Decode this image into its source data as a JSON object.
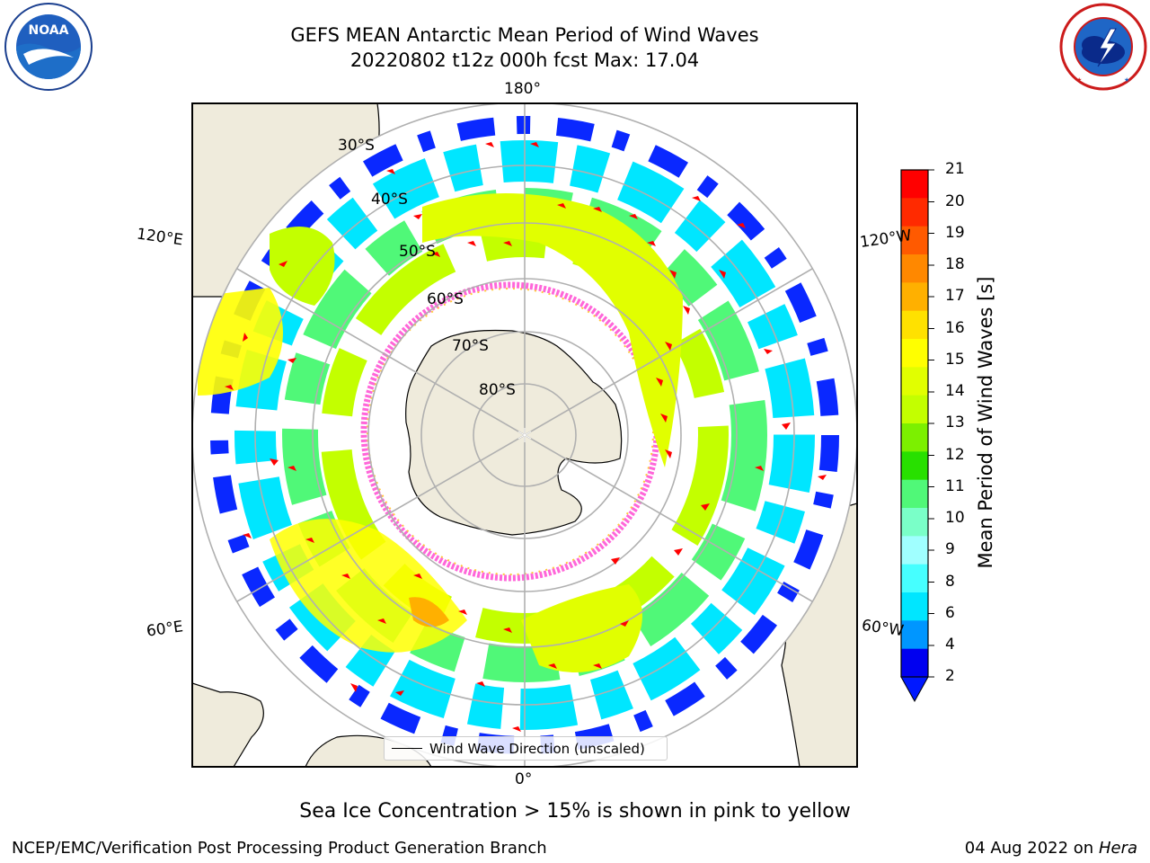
{
  "header": {
    "title_line1": "GEFS MEAN Antarctic Mean Period of Wind Waves",
    "title_line2": "20220802 t12z 000h fcst   Max: 17.04"
  },
  "logos": {
    "left": "NOAA",
    "left_ring_text": "NATIONAL OCEANIC AND ATMOSPHERIC ADMINISTRATION · U.S. DEPARTMENT OF COMMERCE",
    "right_ring_text": "NATIONAL WEATHER SERVICE"
  },
  "map": {
    "longitude_labels": {
      "top": "180°",
      "bottom": "0°",
      "left_upper": "120°E",
      "left_lower": "60°E",
      "right_upper": "120°W",
      "right_lower": "60°W"
    },
    "latitude_labels": [
      "30°S",
      "40°S",
      "50°S",
      "60°S",
      "70°S",
      "80°S"
    ],
    "legend_label": "Wind Wave Direction (unscaled)"
  },
  "colorbar": {
    "title": "Mean Period of Wind Waves [s]",
    "ticks": [
      "21",
      "20",
      "19",
      "18",
      "17",
      "16",
      "15",
      "14",
      "13",
      "12",
      "11",
      "10",
      "9",
      "8",
      "6",
      "4",
      "2"
    ],
    "colors": [
      "#ff0000",
      "#ff2a00",
      "#ff5a00",
      "#ff8800",
      "#ffb000",
      "#ffe100",
      "#ffff00",
      "#e1ff00",
      "#c3ff00",
      "#7cf000",
      "#28e000",
      "#50f878",
      "#7affc8",
      "#a0ffff",
      "#46ffff",
      "#00e6ff",
      "#0096ff",
      "#0000f0"
    ],
    "extend_color": "#0018ff"
  },
  "footer": {
    "note": "Sea Ice Concentration > 15% is shown in pink to yellow",
    "left": "NCEP/EMC/Verification Post Processing Product Generation Branch",
    "right_date": "04 Aug 2022 on",
    "right_host": "Hera"
  }
}
